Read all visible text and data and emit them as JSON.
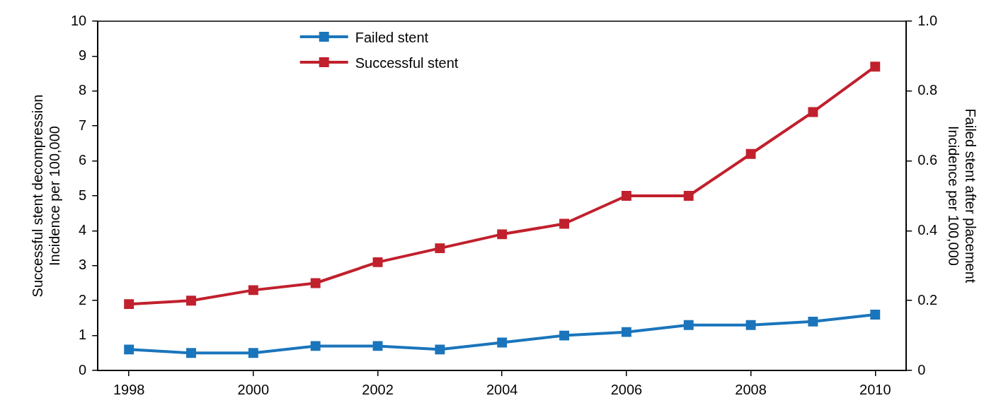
{
  "chart_data": {
    "type": "line",
    "x": [
      1998,
      1999,
      2000,
      2001,
      2002,
      2003,
      2004,
      2005,
      2006,
      2007,
      2008,
      2009,
      2010
    ],
    "series": [
      {
        "name": "Failed stent",
        "color": "#1a75bc",
        "axis": "y2",
        "values": [
          0.06,
          0.05,
          0.05,
          0.07,
          0.07,
          0.06,
          0.08,
          0.1,
          0.11,
          0.13,
          0.13,
          0.14,
          0.16
        ]
      },
      {
        "name": "Successful stent",
        "color": "#c1202d",
        "values": [
          1.9,
          2.0,
          2.3,
          2.5,
          3.1,
          3.5,
          3.9,
          4.2,
          5.0,
          5.0,
          6.2,
          7.4,
          8.7
        ]
      }
    ],
    "ylabel": "Successful stent decompression\nIncidence per 100,000",
    "y2label": "Failed stent after placement\nIncidence per 100,000",
    "xlim": [
      1997.5,
      2010.5
    ],
    "xticks": [
      1998,
      2000,
      2002,
      2004,
      2006,
      2008,
      2010
    ],
    "ylim": [
      0,
      10
    ],
    "yticks": [
      0,
      1,
      2,
      3,
      4,
      5,
      6,
      7,
      8,
      9,
      10
    ],
    "y2lim": [
      0,
      1
    ],
    "y2ticks": [
      0,
      {
        "value": 0.2,
        "label": "0.2"
      },
      {
        "value": 0.4,
        "label": "0.4"
      },
      {
        "value": 0.6,
        "label": "0.6"
      },
      {
        "value": 0.8,
        "label": "0.8"
      },
      {
        "value": 1,
        "label": "1.0"
      }
    ],
    "grid": false,
    "legend": "top",
    "marker": "square",
    "line_style": "solid"
  }
}
